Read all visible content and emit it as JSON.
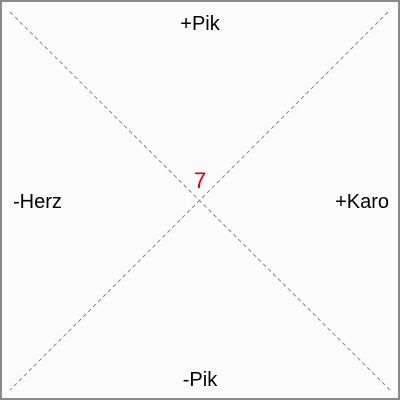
{
  "labels": {
    "top": "+Pik",
    "bottom": "-Pik",
    "left": "-Herz",
    "right": "+Karo"
  },
  "center": {
    "value": "7",
    "color": "#e00000"
  },
  "colors": {
    "border": "#8a8a8a",
    "background": "#fbfbfb",
    "diagonal": "#888888",
    "text": "#000000"
  }
}
